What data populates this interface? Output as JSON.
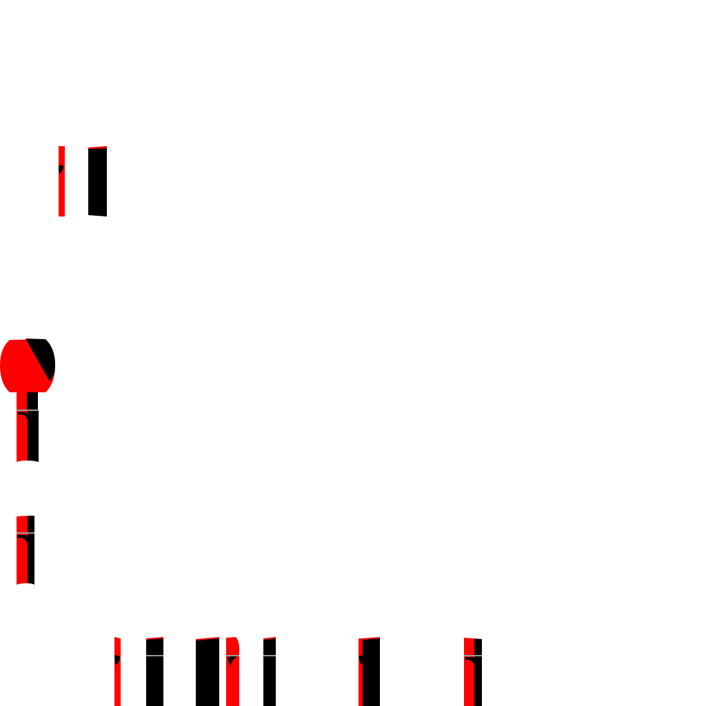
{
  "colors": {
    "background": "#ffffff",
    "primary": "#ff0000",
    "secondary": "#000000",
    "seam": "#9a9a9a"
  }
}
